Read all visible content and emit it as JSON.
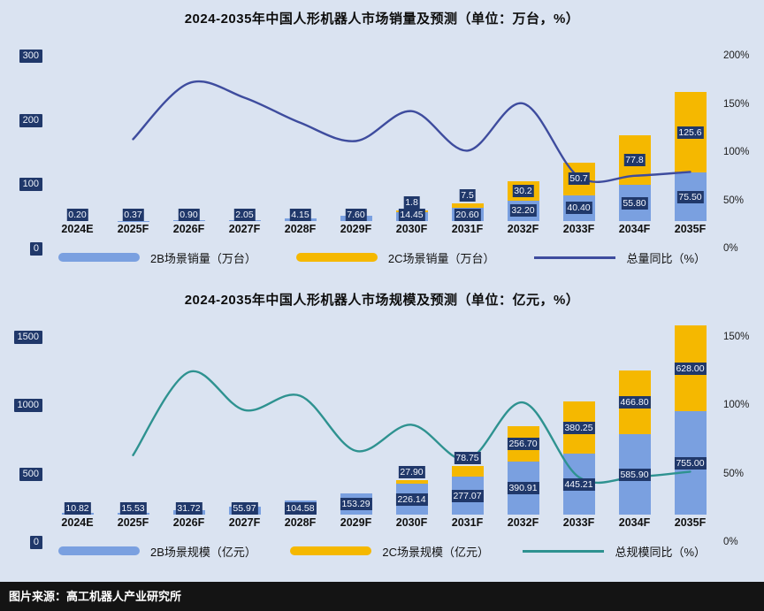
{
  "background": "#dae3f1",
  "caption": {
    "text": "图片来源：高工机器人产业研究所"
  },
  "chart_data": [
    {
      "type": "bar+line",
      "title": "2024-2035年中国人形机器人市场销量及预测（单位：万台，%）",
      "categories": [
        "2024E",
        "2025F",
        "2026F",
        "2027F",
        "2028F",
        "2029F",
        "2030F",
        "2031F",
        "2032F",
        "2033F",
        "2034F",
        "2035F"
      ],
      "series": [
        {
          "name": "2B场景销量（万台）",
          "kind": "bar",
          "color": "#7aa0e0",
          "values": [
            0.2,
            0.37,
            0.9,
            2.05,
            4.15,
            7.6,
            14.45,
            20.6,
            32.2,
            40.4,
            55.8,
            75.5
          ],
          "labels": [
            "0.20",
            "0.37",
            "0.90",
            "2.05",
            "4.15",
            "7.60",
            "14.45",
            "20.60",
            "32.20",
            "40.40",
            "55.80",
            "75.50"
          ]
        },
        {
          "name": "2C场景销量（万台）",
          "kind": "bar",
          "color": "#f5b800",
          "values": [
            0,
            0,
            0,
            0,
            0,
            0,
            1.8,
            7.5,
            30.2,
            50.7,
            77.8,
            125.6
          ],
          "labels": [
            null,
            null,
            null,
            null,
            null,
            null,
            "1.8",
            "7.5",
            "30.2",
            "50.7",
            "77.8",
            "125.6"
          ]
        },
        {
          "name": "总量同比（%）",
          "kind": "line",
          "color": "#3e4c9e",
          "values": [
            null,
            85,
            143,
            128,
            102,
            83,
            114,
            73,
            122,
            46,
            47,
            51
          ]
        }
      ],
      "left_axis": {
        "ticks": [
          "300",
          "200",
          "100",
          "0"
        ],
        "max": 300
      },
      "right_axis": {
        "ticks": [
          "200%",
          "150%",
          "100%",
          "50%",
          "0%"
        ],
        "max": 200
      },
      "legend_position": "bottom",
      "grid": false
    },
    {
      "type": "bar+line",
      "title": "2024-2035年中国人形机器人市场规模及预测（单位：亿元，%）",
      "categories": [
        "2024E",
        "2025F",
        "2026F",
        "2027F",
        "2028F",
        "2029F",
        "2030F",
        "2031F",
        "2032F",
        "2033F",
        "2034F",
        "2035F"
      ],
      "series": [
        {
          "name": "2B场景规模（亿元）",
          "kind": "bar",
          "color": "#7aa0e0",
          "values": [
            10.82,
            15.53,
            31.72,
            55.97,
            104.58,
            153.29,
            226.14,
            277.07,
            390.91,
            445.21,
            585.9,
            755.0
          ],
          "labels": [
            "10.82",
            "15.53",
            "31.72",
            "55.97",
            "104.58",
            "153.29",
            "226.14",
            "277.07",
            "390.91",
            "445.21",
            "585.90",
            "755.00"
          ]
        },
        {
          "name": "2C场景规模（亿元）",
          "kind": "bar",
          "color": "#f5b800",
          "values": [
            0,
            0,
            0,
            0,
            0,
            0,
            27.9,
            78.75,
            256.7,
            380.25,
            466.8,
            628.0
          ],
          "labels": [
            null,
            null,
            null,
            null,
            null,
            null,
            "27.90",
            "78.75",
            "256.70",
            "380.25",
            "466.80",
            "628.00"
          ]
        },
        {
          "name": "总规模同比（%）",
          "kind": "line",
          "color": "#2e9290",
          "values": [
            null,
            43.5,
            104.2,
            76.4,
            86.9,
            46.6,
            65.7,
            40.1,
            82.0,
            27.5,
            27.5,
            31.4
          ]
        }
      ],
      "left_axis": {
        "ticks": [
          "1500",
          "1000",
          "500",
          "0"
        ],
        "max": 1500
      },
      "right_axis": {
        "ticks": [
          "150%",
          "100%",
          "50%",
          "0%"
        ],
        "max": 150
      },
      "legend_position": "bottom",
      "grid": false
    }
  ]
}
